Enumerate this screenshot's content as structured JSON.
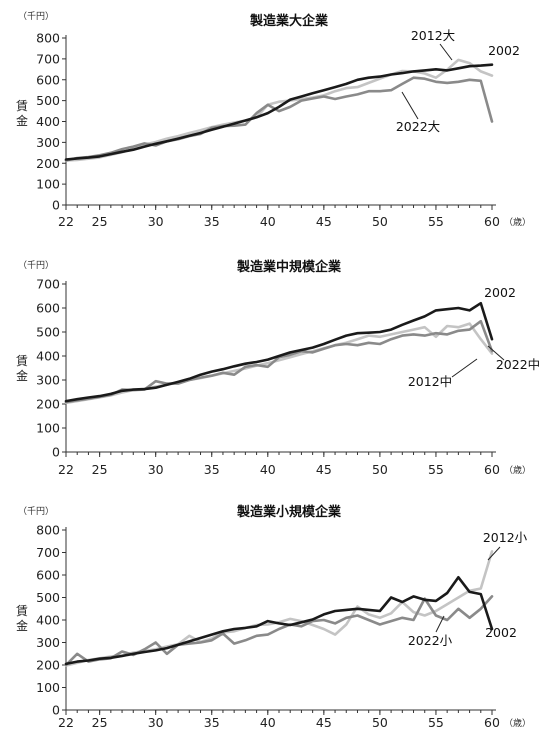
{
  "chart_data": [
    {
      "type": "line",
      "title": "製造業大企業",
      "ylabel": "賃金",
      "yunit": "（千円）",
      "xunit": "（歳）",
      "xlim": [
        22,
        60
      ],
      "ylim": [
        0,
        800
      ],
      "xticks": [
        22,
        25,
        30,
        35,
        40,
        45,
        50,
        55,
        60
      ],
      "yticks": [
        0,
        100,
        200,
        300,
        400,
        500,
        600,
        700,
        800
      ],
      "x": [
        22,
        23,
        24,
        25,
        26,
        27,
        28,
        29,
        30,
        31,
        32,
        33,
        34,
        35,
        36,
        37,
        38,
        39,
        40,
        41,
        42,
        43,
        44,
        45,
        46,
        47,
        48,
        49,
        50,
        51,
        52,
        53,
        54,
        55,
        56,
        57,
        58,
        59,
        60
      ],
      "series": [
        {
          "name": "2002",
          "color": "#1a1a1a",
          "values": [
            218,
            223,
            227,
            233,
            244,
            255,
            265,
            280,
            293,
            305,
            318,
            332,
            345,
            360,
            375,
            390,
            405,
            420,
            440,
            470,
            505,
            520,
            535,
            550,
            565,
            580,
            600,
            610,
            615,
            625,
            632,
            640,
            645,
            650,
            645,
            655,
            665,
            668,
            672
          ]
        },
        {
          "name": "2012大",
          "color": "#c4c4c4",
          "values": [
            213,
            216,
            222,
            228,
            240,
            253,
            268,
            290,
            302,
            318,
            330,
            345,
            358,
            373,
            385,
            395,
            405,
            420,
            480,
            495,
            500,
            508,
            515,
            525,
            545,
            560,
            565,
            585,
            605,
            625,
            642,
            640,
            630,
            610,
            648,
            695,
            680,
            640,
            620
          ]
        },
        {
          "name": "2022大",
          "color": "#8a8a8a",
          "values": [
            213,
            225,
            230,
            238,
            250,
            268,
            280,
            295,
            285,
            305,
            315,
            330,
            340,
            370,
            378,
            380,
            385,
            440,
            480,
            450,
            470,
            500,
            510,
            520,
            508,
            520,
            530,
            545,
            545,
            550,
            580,
            610,
            605,
            590,
            585,
            590,
            600,
            595,
            400
          ]
        }
      ]
    },
    {
      "type": "line",
      "title": "製造業中規模企業",
      "ylabel": "賃金",
      "yunit": "（千円）",
      "xunit": "（歳）",
      "xlim": [
        22,
        60
      ],
      "ylim": [
        0,
        700
      ],
      "xticks": [
        22,
        25,
        30,
        35,
        40,
        45,
        50,
        55,
        60
      ],
      "yticks": [
        0,
        100,
        200,
        300,
        400,
        500,
        600,
        700
      ],
      "x": [
        22,
        23,
        24,
        25,
        26,
        27,
        28,
        29,
        30,
        31,
        32,
        33,
        34,
        35,
        36,
        37,
        38,
        39,
        40,
        41,
        42,
        43,
        44,
        45,
        46,
        47,
        48,
        49,
        50,
        51,
        52,
        53,
        54,
        55,
        56,
        57,
        58,
        59,
        60
      ],
      "series": [
        {
          "name": "2002",
          "color": "#1a1a1a",
          "values": [
            212,
            220,
            227,
            233,
            242,
            255,
            260,
            262,
            268,
            280,
            292,
            305,
            322,
            335,
            345,
            357,
            368,
            375,
            385,
            400,
            415,
            425,
            435,
            450,
            468,
            485,
            495,
            497,
            500,
            510,
            530,
            548,
            565,
            590,
            595,
            600,
            590,
            620,
            470
          ]
        },
        {
          "name": "2012中",
          "color": "#c4c4c4",
          "values": [
            205,
            212,
            220,
            228,
            236,
            248,
            258,
            262,
            272,
            280,
            290,
            300,
            308,
            318,
            328,
            338,
            348,
            360,
            370,
            382,
            395,
            408,
            420,
            432,
            445,
            455,
            470,
            485,
            480,
            490,
            500,
            510,
            520,
            480,
            525,
            520,
            535,
            470,
            410
          ]
        },
        {
          "name": "2022中",
          "color": "#8a8a8a",
          "values": [
            208,
            215,
            222,
            230,
            238,
            260,
            258,
            260,
            295,
            285,
            285,
            300,
            310,
            318,
            330,
            322,
            355,
            362,
            355,
            395,
            405,
            420,
            415,
            430,
            445,
            450,
            445,
            455,
            450,
            470,
            485,
            490,
            485,
            495,
            490,
            505,
            510,
            545,
            420
          ]
        }
      ]
    },
    {
      "type": "line",
      "title": "製造業小規模企業",
      "ylabel": "賃金",
      "yunit": "（千円）",
      "xunit": "（歳）",
      "xlim": [
        22,
        60
      ],
      "ylim": [
        0,
        800
      ],
      "xticks": [
        22,
        25,
        30,
        35,
        40,
        45,
        50,
        55,
        60
      ],
      "yticks": [
        0,
        100,
        200,
        300,
        400,
        500,
        600,
        700,
        800
      ],
      "x": [
        22,
        23,
        24,
        25,
        26,
        27,
        28,
        29,
        30,
        31,
        32,
        33,
        34,
        35,
        36,
        37,
        38,
        39,
        40,
        41,
        42,
        43,
        44,
        45,
        46,
        47,
        48,
        49,
        50,
        51,
        52,
        53,
        54,
        55,
        56,
        57,
        58,
        59,
        60
      ],
      "series": [
        {
          "name": "2002",
          "color": "#1a1a1a",
          "values": [
            205,
            215,
            220,
            228,
            232,
            240,
            250,
            258,
            265,
            275,
            290,
            305,
            320,
            335,
            350,
            360,
            365,
            372,
            395,
            385,
            378,
            390,
            402,
            425,
            440,
            445,
            450,
            445,
            440,
            500,
            480,
            505,
            490,
            485,
            520,
            590,
            525,
            515,
            360
          ]
        },
        {
          "name": "2012小",
          "color": "#c4c4c4",
          "values": [
            198,
            210,
            222,
            230,
            238,
            243,
            255,
            262,
            270,
            282,
            292,
            330,
            302,
            318,
            345,
            350,
            365,
            378,
            380,
            390,
            405,
            395,
            378,
            360,
            335,
            380,
            460,
            425,
            410,
            430,
            480,
            435,
            420,
            440,
            470,
            500,
            530,
            540,
            705
          ]
        },
        {
          "name": "2022小",
          "color": "#8a8a8a",
          "values": [
            200,
            250,
            215,
            225,
            230,
            260,
            245,
            270,
            300,
            250,
            290,
            295,
            300,
            310,
            340,
            295,
            310,
            330,
            335,
            360,
            380,
            372,
            395,
            400,
            385,
            410,
            420,
            400,
            380,
            395,
            410,
            400,
            495,
            420,
            400,
            450,
            410,
            450,
            505
          ]
        }
      ]
    }
  ]
}
